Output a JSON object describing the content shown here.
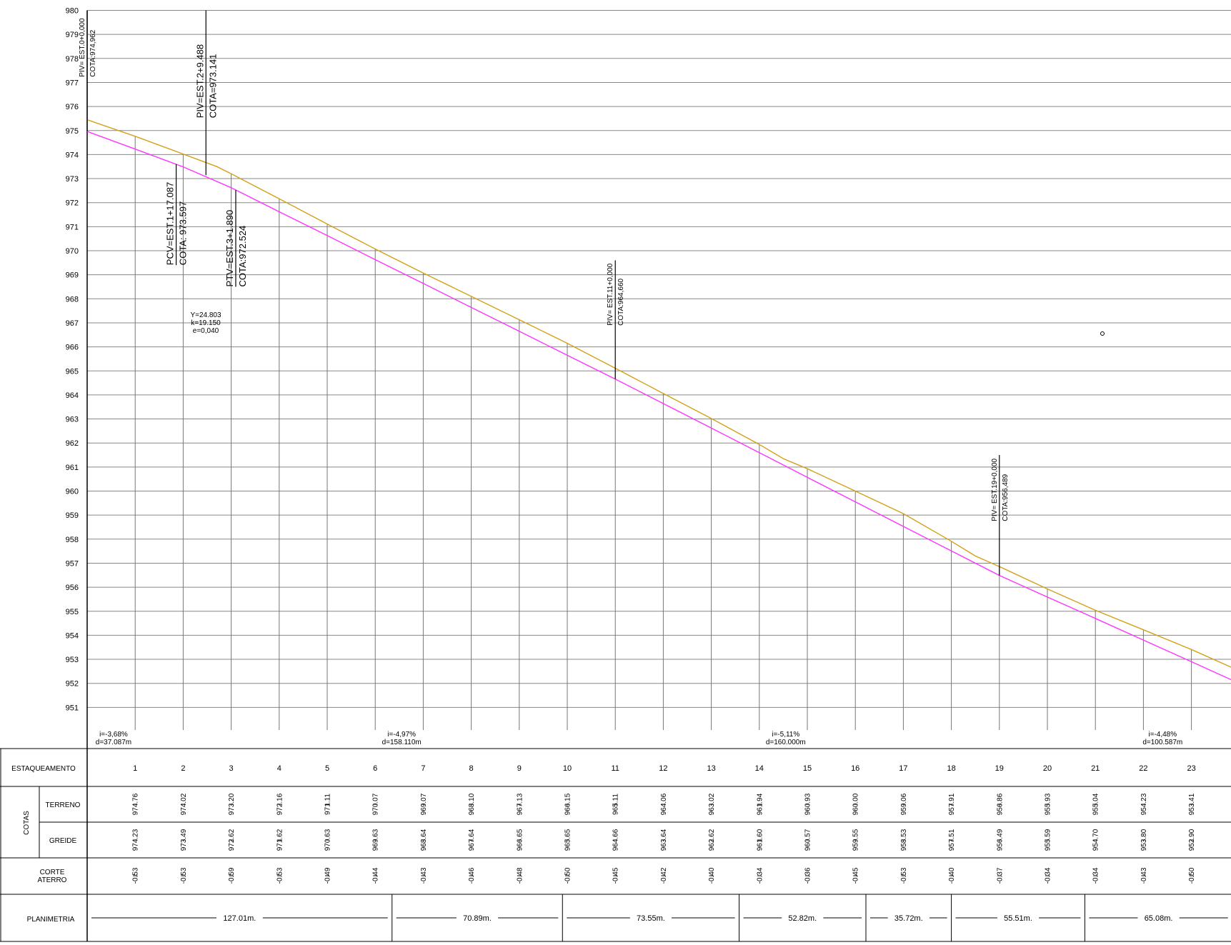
{
  "chart_data": {
    "type": "line",
    "y_ticks": [
      "980",
      "979",
      "978",
      "977",
      "976",
      "975",
      "974",
      "973",
      "972",
      "971",
      "970",
      "969",
      "968",
      "967",
      "966",
      "965",
      "964",
      "963",
      "962",
      "961",
      "960",
      "959",
      "958",
      "957",
      "956",
      "955",
      "954",
      "953",
      "952",
      "951"
    ],
    "ylim": [
      950.5,
      980
    ],
    "station_start": 0,
    "station_end": 23.85,
    "series": [
      {
        "color": "#d4a017",
        "values": [
          [
            0,
            975.45
          ],
          [
            1,
            974.76
          ],
          [
            2,
            974.02
          ],
          [
            2.7,
            973.5
          ],
          [
            3,
            973.2
          ],
          [
            4,
            972.16
          ],
          [
            5,
            971.11
          ],
          [
            6,
            970.07
          ],
          [
            7,
            969.07
          ],
          [
            8,
            968.1
          ],
          [
            9,
            967.13
          ],
          [
            10,
            966.15
          ],
          [
            11,
            965.11
          ],
          [
            12,
            964.06
          ],
          [
            13,
            963.02
          ],
          [
            14,
            961.94
          ],
          [
            14.5,
            961.35
          ],
          [
            15,
            960.93
          ],
          [
            16,
            960.0
          ],
          [
            17,
            959.06
          ],
          [
            18,
            957.91
          ],
          [
            18.5,
            957.3
          ],
          [
            19,
            956.86
          ],
          [
            20,
            955.93
          ],
          [
            21,
            955.04
          ],
          [
            22,
            954.23
          ],
          [
            23,
            953.41
          ],
          [
            23.85,
            952.65
          ]
        ]
      },
      {
        "color": "#ff33ff",
        "values": [
          [
            0,
            974.962
          ],
          [
            1,
            974.23
          ],
          [
            2,
            973.49
          ],
          [
            3,
            972.62
          ],
          [
            4,
            971.62
          ],
          [
            5,
            970.63
          ],
          [
            6,
            969.63
          ],
          [
            7,
            968.64
          ],
          [
            8,
            967.64
          ],
          [
            9,
            966.65
          ],
          [
            10,
            965.65
          ],
          [
            11,
            964.66
          ],
          [
            12,
            963.64
          ],
          [
            13,
            962.62
          ],
          [
            14,
            961.6
          ],
          [
            15,
            960.57
          ],
          [
            16,
            959.55
          ],
          [
            17,
            958.53
          ],
          [
            18,
            957.51
          ],
          [
            19,
            956.49
          ],
          [
            20,
            955.59
          ],
          [
            21,
            954.7
          ],
          [
            22,
            953.8
          ],
          [
            23,
            952.9
          ],
          [
            23.85,
            952.13
          ]
        ]
      }
    ],
    "annotations": [
      {
        "station": 0,
        "lines": [
          "PIV= EST.0+0,000",
          "COTA:974,962"
        ],
        "y_top": 980,
        "y_bottom": 974.962,
        "small": true
      },
      {
        "station": 2.474,
        "lines": [
          "PIV=EST.2+9.488",
          "COTA=973.141"
        ],
        "y_top": 980,
        "y_bottom": 973.141,
        "small": false
      },
      {
        "station": 1.854,
        "lines": [
          "PCV=EST.1+17.087",
          "COTA:  973.597"
        ],
        "y_top": 973.6,
        "y_bottom": 969.4,
        "small": false
      },
      {
        "station": 3.095,
        "lines": [
          "PTV=EST.3+1.890",
          "COTA:972.524"
        ],
        "y_top": 972.524,
        "y_bottom": 968.5,
        "small": false
      },
      {
        "station": 11,
        "lines": [
          "PIV=  EST.11+0,000",
          "COTA:964,660"
        ],
        "y_top": 969.6,
        "y_bottom": 964.66,
        "small": true
      },
      {
        "station": 19,
        "lines": [
          "PIV=  EST.19+0,000",
          "COTA:956,489"
        ],
        "y_top": 961.5,
        "y_bottom": 956.489,
        "small": true
      }
    ],
    "curve_params": [
      "Y=24.803",
      "k=19.150",
      "e=0,040"
    ],
    "grades": [
      {
        "station": 0.55,
        "i": "i=-3,68%",
        "d": "d=37.087m"
      },
      {
        "station": 6.55,
        "i": "i=-4,97%",
        "d": "d=158.110m"
      },
      {
        "station": 14.55,
        "i": "i=-5,11%",
        "d": "d=160.000m"
      },
      {
        "station": 22.4,
        "i": "i=-4,48%",
        "d": "d=100.587m"
      }
    ],
    "table": {
      "row_labels": {
        "estaqueamento": "ESTAQUEAMENTO",
        "cotas": "COTAS",
        "terreno": "TERRENO",
        "greide": "GREIDE",
        "corte": "CORTE",
        "aterro": "ATERRO",
        "planimetria": "PLANIMETRIA"
      },
      "stations": [
        "1",
        "2",
        "3",
        "4",
        "5",
        "6",
        "7",
        "8",
        "9",
        "10",
        "11",
        "12",
        "13",
        "14",
        "15",
        "16",
        "17",
        "18",
        "19",
        "20",
        "21",
        "22",
        "23"
      ],
      "terreno": [
        "974.76",
        "974.02",
        "973.20",
        "972.16",
        "971.11",
        "970.07",
        "969.07",
        "968.10",
        "967.13",
        "966.15",
        "965.11",
        "964.06",
        "963.02",
        "961.94",
        "960.93",
        "960.00",
        "959.06",
        "957.91",
        "956.86",
        "955.93",
        "955.04",
        "954.23",
        "953.41"
      ],
      "greide": [
        "974.23",
        "973.49",
        "972.62",
        "971.62",
        "970.63",
        "969.63",
        "968.64",
        "967.64",
        "966.65",
        "965.65",
        "964.66",
        "963.64",
        "962.62",
        "961.60",
        "960.57",
        "959.55",
        "958.53",
        "957.51",
        "956.49",
        "955.59",
        "954.70",
        "953.80",
        "952.90"
      ],
      "corte_aterro": [
        "-0.53",
        "-0.53",
        "-0.59",
        "-0.53",
        "-0.49",
        "-0.44",
        "-0.43",
        "-0.46",
        "-0.48",
        "-0.50",
        "-0.45",
        "-0.42",
        "-0.40",
        "-0.34",
        "-0.36",
        "-0.45",
        "-0.53",
        "-0.40",
        "-0.37",
        "-0.34",
        "-0.34",
        "-0.43",
        "-0.50"
      ],
      "planimetria": [
        {
          "label": "127.01m.",
          "from": 0,
          "to": 6.35
        },
        {
          "label": "70.89m.",
          "from": 6.35,
          "to": 9.9
        },
        {
          "label": "73.55m.",
          "from": 9.9,
          "to": 13.58
        },
        {
          "label": "52.82m.",
          "from": 13.58,
          "to": 16.22
        },
        {
          "label": "35.72m.",
          "from": 16.22,
          "to": 18.0
        },
        {
          "label": "55.51m.",
          "from": 18.0,
          "to": 20.78
        },
        {
          "label": "65.08m.",
          "from": 20.78,
          "to": 23.85
        }
      ]
    }
  }
}
